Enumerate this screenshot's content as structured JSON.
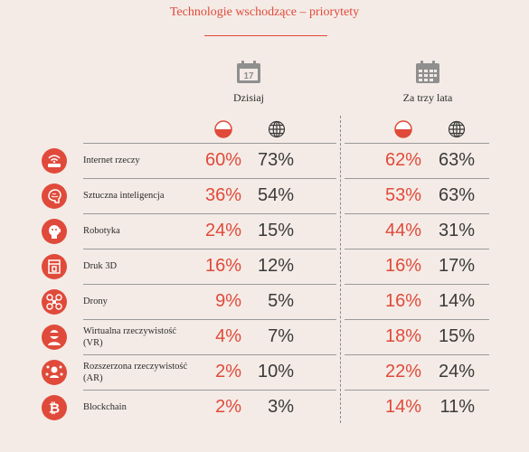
{
  "title": "Technologie wschodzące – priorytety",
  "periods": {
    "today": {
      "label": "Dzisiaj",
      "icon": "calendar-17-icon",
      "day": "17"
    },
    "three_years": {
      "label": "Za trzy lata",
      "icon": "calendar-grid-icon"
    }
  },
  "columns": {
    "poland_icon": "poland-flag-icon",
    "global_icon": "globe-icon"
  },
  "colors": {
    "accent": "#e04a3a",
    "background": "#f4ebe6",
    "text": "#2b2b2b"
  },
  "rows": [
    {
      "icon": "iot-router-icon",
      "label": "Internet rzeczy",
      "today_pl": "60%",
      "today_global": "73%",
      "future_pl": "62%",
      "future_global": "63%"
    },
    {
      "icon": "brain-icon",
      "label": "Sztuczna inteligencja",
      "today_pl": "36%",
      "today_global": "54%",
      "future_pl": "53%",
      "future_global": "63%"
    },
    {
      "icon": "robot-icon",
      "label": "Robotyka",
      "today_pl": "24%",
      "today_global": "15%",
      "future_pl": "44%",
      "future_global": "31%"
    },
    {
      "icon": "3d-printer-icon",
      "label": "Druk 3D",
      "today_pl": "16%",
      "today_global": "12%",
      "future_pl": "16%",
      "future_global": "17%"
    },
    {
      "icon": "drone-icon",
      "label": "Drony",
      "today_pl": "9%",
      "today_global": "5%",
      "future_pl": "16%",
      "future_global": "14%"
    },
    {
      "icon": "vr-headset-icon",
      "label": "Wirtualna rzeczywistość (VR)",
      "today_pl": "4%",
      "today_global": "7%",
      "future_pl": "18%",
      "future_global": "15%"
    },
    {
      "icon": "ar-person-icon",
      "label": "Rozszerzona rzeczywistość (AR)",
      "today_pl": "2%",
      "today_global": "10%",
      "future_pl": "22%",
      "future_global": "24%"
    },
    {
      "icon": "bitcoin-icon",
      "label": "Blockchain",
      "today_pl": "2%",
      "today_global": "3%",
      "future_pl": "14%",
      "future_global": "11%"
    }
  ]
}
